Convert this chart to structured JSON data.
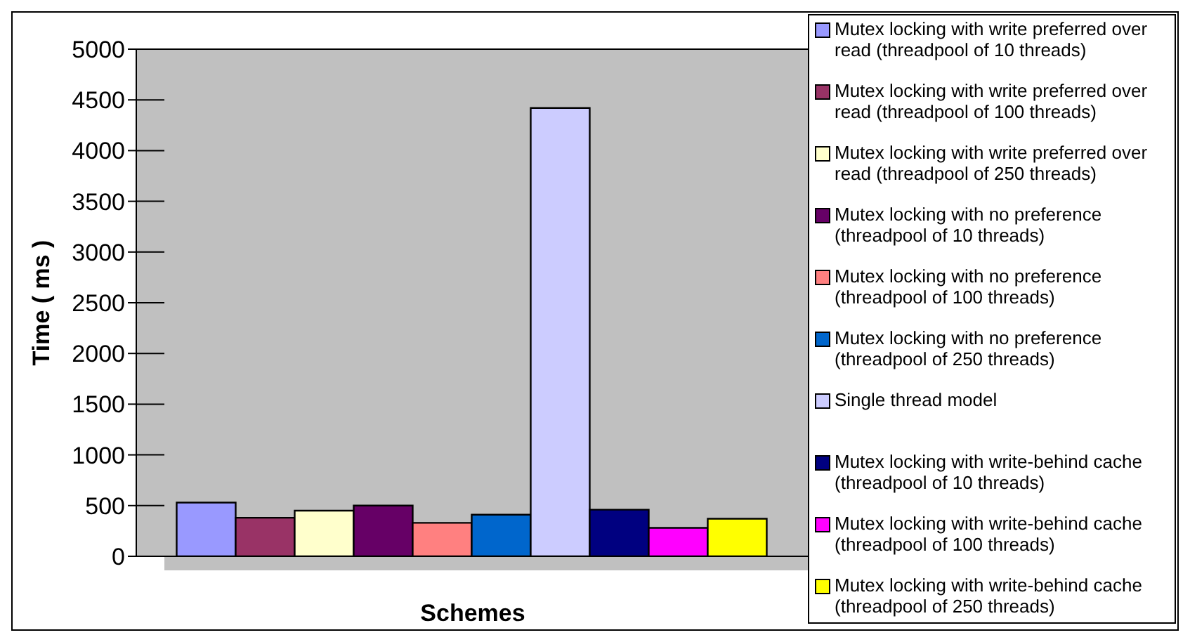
{
  "chart_data": {
    "type": "bar",
    "xlabel": "Schemes",
    "ylabel": "Time ( ms )",
    "categories": [
      null
    ],
    "series": [
      {
        "name": "Mutex locking with write preferred over read (threadpool of 10 threads)",
        "color": "#9999ff",
        "values": [
          530
        ]
      },
      {
        "name": "Mutex locking with write preferred over read (threadpool of 100 threads)",
        "color": "#993366",
        "values": [
          380
        ]
      },
      {
        "name": "Mutex locking with write preferred over read (threadpool of 250 threads)",
        "color": "#ffffcc",
        "values": [
          450
        ]
      },
      {
        "name": "Mutex locking with no preference (threadpool of 10 threads)",
        "color": "#660066",
        "values": [
          500
        ]
      },
      {
        "name": "Mutex locking with no preference (threadpool of 100 threads)",
        "color": "#ff8080",
        "values": [
          330
        ]
      },
      {
        "name": "Mutex locking with no preference (threadpool of 250 threads)",
        "color": "#0066cc",
        "values": [
          410
        ]
      },
      {
        "name": "Single thread model",
        "color": "#ccccff",
        "values": [
          4420
        ]
      },
      {
        "name": "Mutex locking with write-behind cache (threadpool of 10 threads)",
        "color": "#000080",
        "values": [
          460
        ]
      },
      {
        "name": "Mutex locking with write-behind cache (threadpool of 100 threads)",
        "color": "#ff00ff",
        "values": [
          280
        ]
      },
      {
        "name": "Mutex locking with write-behind cache (threadpool of 250 threads)",
        "color": "#ffff00",
        "values": [
          370
        ]
      }
    ],
    "ylim": [
      0,
      5000
    ],
    "yticks": [
      0,
      500,
      1000,
      1500,
      2000,
      2500,
      3000,
      3500,
      4000,
      4500,
      5000
    ],
    "grid": "y",
    "legend": "right"
  }
}
